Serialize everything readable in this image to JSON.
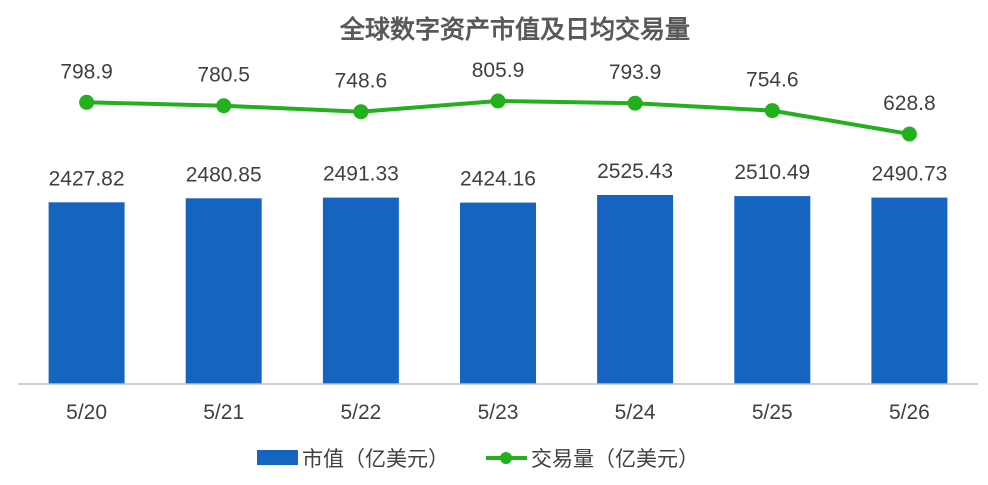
{
  "chart_data": {
    "type": "bar",
    "title": "全球数字资产市值及日均交易量",
    "categories": [
      "5/20",
      "5/21",
      "5/22",
      "5/23",
      "5/24",
      "5/25",
      "5/26"
    ],
    "series": [
      {
        "name": "市值（亿美元）",
        "type": "bar",
        "color": "#1565C0",
        "values": [
          2427.82,
          2480.85,
          2491.33,
          2424.16,
          2525.43,
          2510.49,
          2490.73
        ]
      },
      {
        "name": "交易量（亿美元）",
        "type": "line",
        "color": "#22B11C",
        "values": [
          798.9,
          780.5,
          748.6,
          805.9,
          793.9,
          754.6,
          628.8
        ]
      }
    ],
    "bar_ylim": [
      0,
      2600
    ],
    "line_ylim": [
      0,
      1100
    ],
    "grid": false,
    "legend_position": "bottom"
  }
}
